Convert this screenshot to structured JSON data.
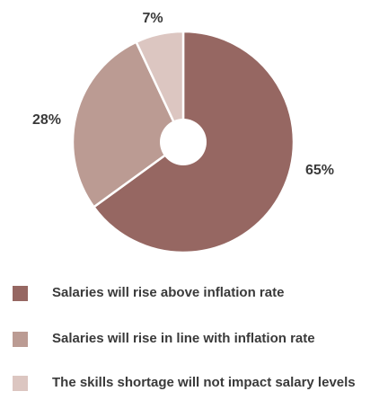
{
  "chart_data": {
    "type": "pie",
    "style": "donut",
    "slices": [
      {
        "label": "Salaries will rise above inflation rate",
        "value": 65,
        "display": "65%",
        "color": "#966762"
      },
      {
        "label": "Salaries will rise in line with inflation rate",
        "value": 28,
        "display": "28%",
        "color": "#bb9b93"
      },
      {
        "label": "The skills shortage will not impact salary levels",
        "value": 7,
        "display": "7%",
        "color": "#dcc6c1"
      }
    ],
    "legend_placement": "bottom"
  }
}
